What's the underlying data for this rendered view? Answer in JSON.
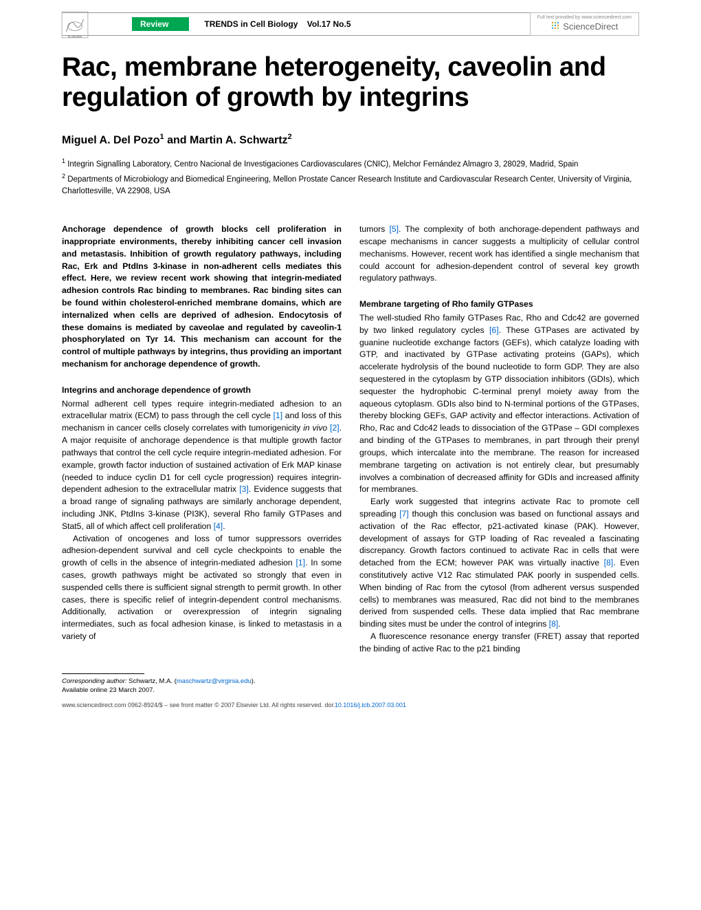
{
  "header": {
    "badge": "Review",
    "journal": "TRENDS in Cell Biology",
    "volume": "Vol.17 No.5",
    "sd_top": "Full text provided by www.sciencedirect.com",
    "sd_brand": "ScienceDirect"
  },
  "title": "Rac, membrane heterogeneity, caveolin and regulation of growth by integrins",
  "authors_html": "Miguel A. Del Pozo<sup>1</sup> and Martin A. Schwartz<sup>2</sup>",
  "affiliations": [
    "<sup>1</sup> Integrin Signalling Laboratory, Centro Nacional de Investigaciones Cardiovasculares (CNIC), Melchor Fernández Almagro 3, 28029, Madrid, Spain",
    "<sup>2</sup> Departments of Microbiology and Biomedical Engineering, Mellon Prostate Cancer Research Institute and Cardiovascular Research Center, University of Virginia, Charlottesville, VA 22908, USA"
  ],
  "left": {
    "abstract": "Anchorage dependence of growth blocks cell proliferation in inappropriate environments, thereby inhibiting cancer cell invasion and metastasis. Inhibition of growth regulatory pathways, including Rac, Erk and PtdIns 3-kinase in non-adherent cells mediates this effect. Here, we review recent work showing that integrin-mediated adhesion controls Rac binding to membranes. Rac binding sites can be found within cholesterol-enriched membrane domains, which are internalized when cells are deprived of adhesion. Endocytosis of these domains is mediated by caveolae and regulated by caveolin-1 phosphorylated on Tyr 14. This mechanism can account for the control of multiple pathways by integrins, thus providing an important mechanism for anchorage dependence of growth.",
    "sec1_head": "Integrins and anchorage dependence of growth",
    "sec1_p1": "Normal adherent cell types require integrin-mediated adhesion to an extracellular matrix (ECM) to pass through the cell cycle <a class='ref' href='#'>[1]</a> and loss of this mechanism in cancer cells closely correlates with tumorigenicity <span class='ital'>in vivo</span> <a class='ref' href='#'>[2]</a>. A major requisite of anchorage dependence is that multiple growth factor pathways that control the cell cycle require integrin-mediated adhesion. For example, growth factor induction of sustained activation of Erk MAP kinase (needed to induce cyclin D1 for cell cycle progression) requires integrin-dependent adhesion to the extracellular matrix <a class='ref' href='#'>[3]</a>. Evidence suggests that a broad range of signaling pathways are similarly anchorage dependent, including JNK, PtdIns 3-kinase (PI3K), several Rho family GTPases and Stat5, all of which affect cell proliferation <a class='ref' href='#'>[4]</a>.",
    "sec1_p2": "Activation of oncogenes and loss of tumor suppressors overrides adhesion-dependent survival and cell cycle checkpoints to enable the growth of cells in the absence of integrin-mediated adhesion <a class='ref' href='#'>[1]</a>. In some cases, growth pathways might be activated so strongly that even in suspended cells there is sufficient signal strength to permit growth. In other cases, there is specific relief of integrin-dependent control mechanisms. Additionally, activation or overexpression of integrin signaling intermediates, such as focal adhesion kinase, is linked to metastasis in a variety of"
  },
  "right": {
    "p0": "tumors <a class='ref' href='#'>[5]</a>. The complexity of both anchorage-dependent pathways and escape mechanisms in cancer suggests a multiplicity of cellular control mechanisms. However, recent work has identified a single mechanism that could account for adhesion-dependent control of several key growth regulatory pathways.",
    "sec1_head": "Membrane targeting of Rho family GTPases",
    "sec1_p1": "The well-studied Rho family GTPases Rac, Rho and Cdc42 are governed by two linked regulatory cycles <a class='ref' href='#'>[6]</a>. These GTPases are activated by guanine nucleotide exchange factors (GEFs), which catalyze loading with GTP, and inactivated by GTPase activating proteins (GAPs), which accelerate hydrolysis of the bound nucleotide to form GDP. They are also sequestered in the cytoplasm by GTP dissociation inhibitors (GDIs), which sequester the hydrophobic C-terminal prenyl moiety away from the aqueous cytoplasm. GDIs also bind to N-terminal portions of the GTPases, thereby blocking GEFs, GAP activity and effector interactions. Activation of Rho, Rac and Cdc42 leads to dissociation of the GTPase – GDI complexes and binding of the GTPases to membranes, in part through their prenyl groups, which intercalate into the membrane. The reason for increased membrane targeting on activation is not entirely clear, but presumably involves a combination of decreased affinity for GDIs and increased affinity for membranes.",
    "sec1_p2": "Early work suggested that integrins activate Rac to promote cell spreading <a class='ref' href='#'>[7]</a> though this conclusion was based on functional assays and activation of the Rac effector, p21-activated kinase (PAK). However, development of assays for GTP loading of Rac revealed a fascinating discrepancy. Growth factors continued to activate Rac in cells that were detached from the ECM; however PAK was virtually inactive <a class='ref' href='#'>[8]</a>. Even constitutively active V12 Rac stimulated PAK poorly in suspended cells. When binding of Rac from the cytosol (from adherent versus suspended cells) to membranes was measured, Rac did not bind to the membranes derived from suspended cells. These data implied that Rac membrane binding sites must be under the control of integrins <a class='ref' href='#'>[8]</a>.",
    "sec1_p3": "A fluorescence resonance energy transfer (FRET) assay that reported the binding of active Rac to the p21 binding"
  },
  "footnote": {
    "corr": "<span class='ital'>Corresponding author:</span> Schwartz, M.A. (<a href='#'>maschwartz@virginia.edu</a>).",
    "avail": "Available online 23 March 2007."
  },
  "footer": {
    "left": "www.sciencedirect.com   0962-8924/$ – see front matter © 2007 Elsevier Ltd. All rights reserved. doi:",
    "doi": "10.1016/j.tcb.2007.03.001"
  },
  "colors": {
    "badge_bg": "#00a651",
    "link": "#0066cc"
  }
}
